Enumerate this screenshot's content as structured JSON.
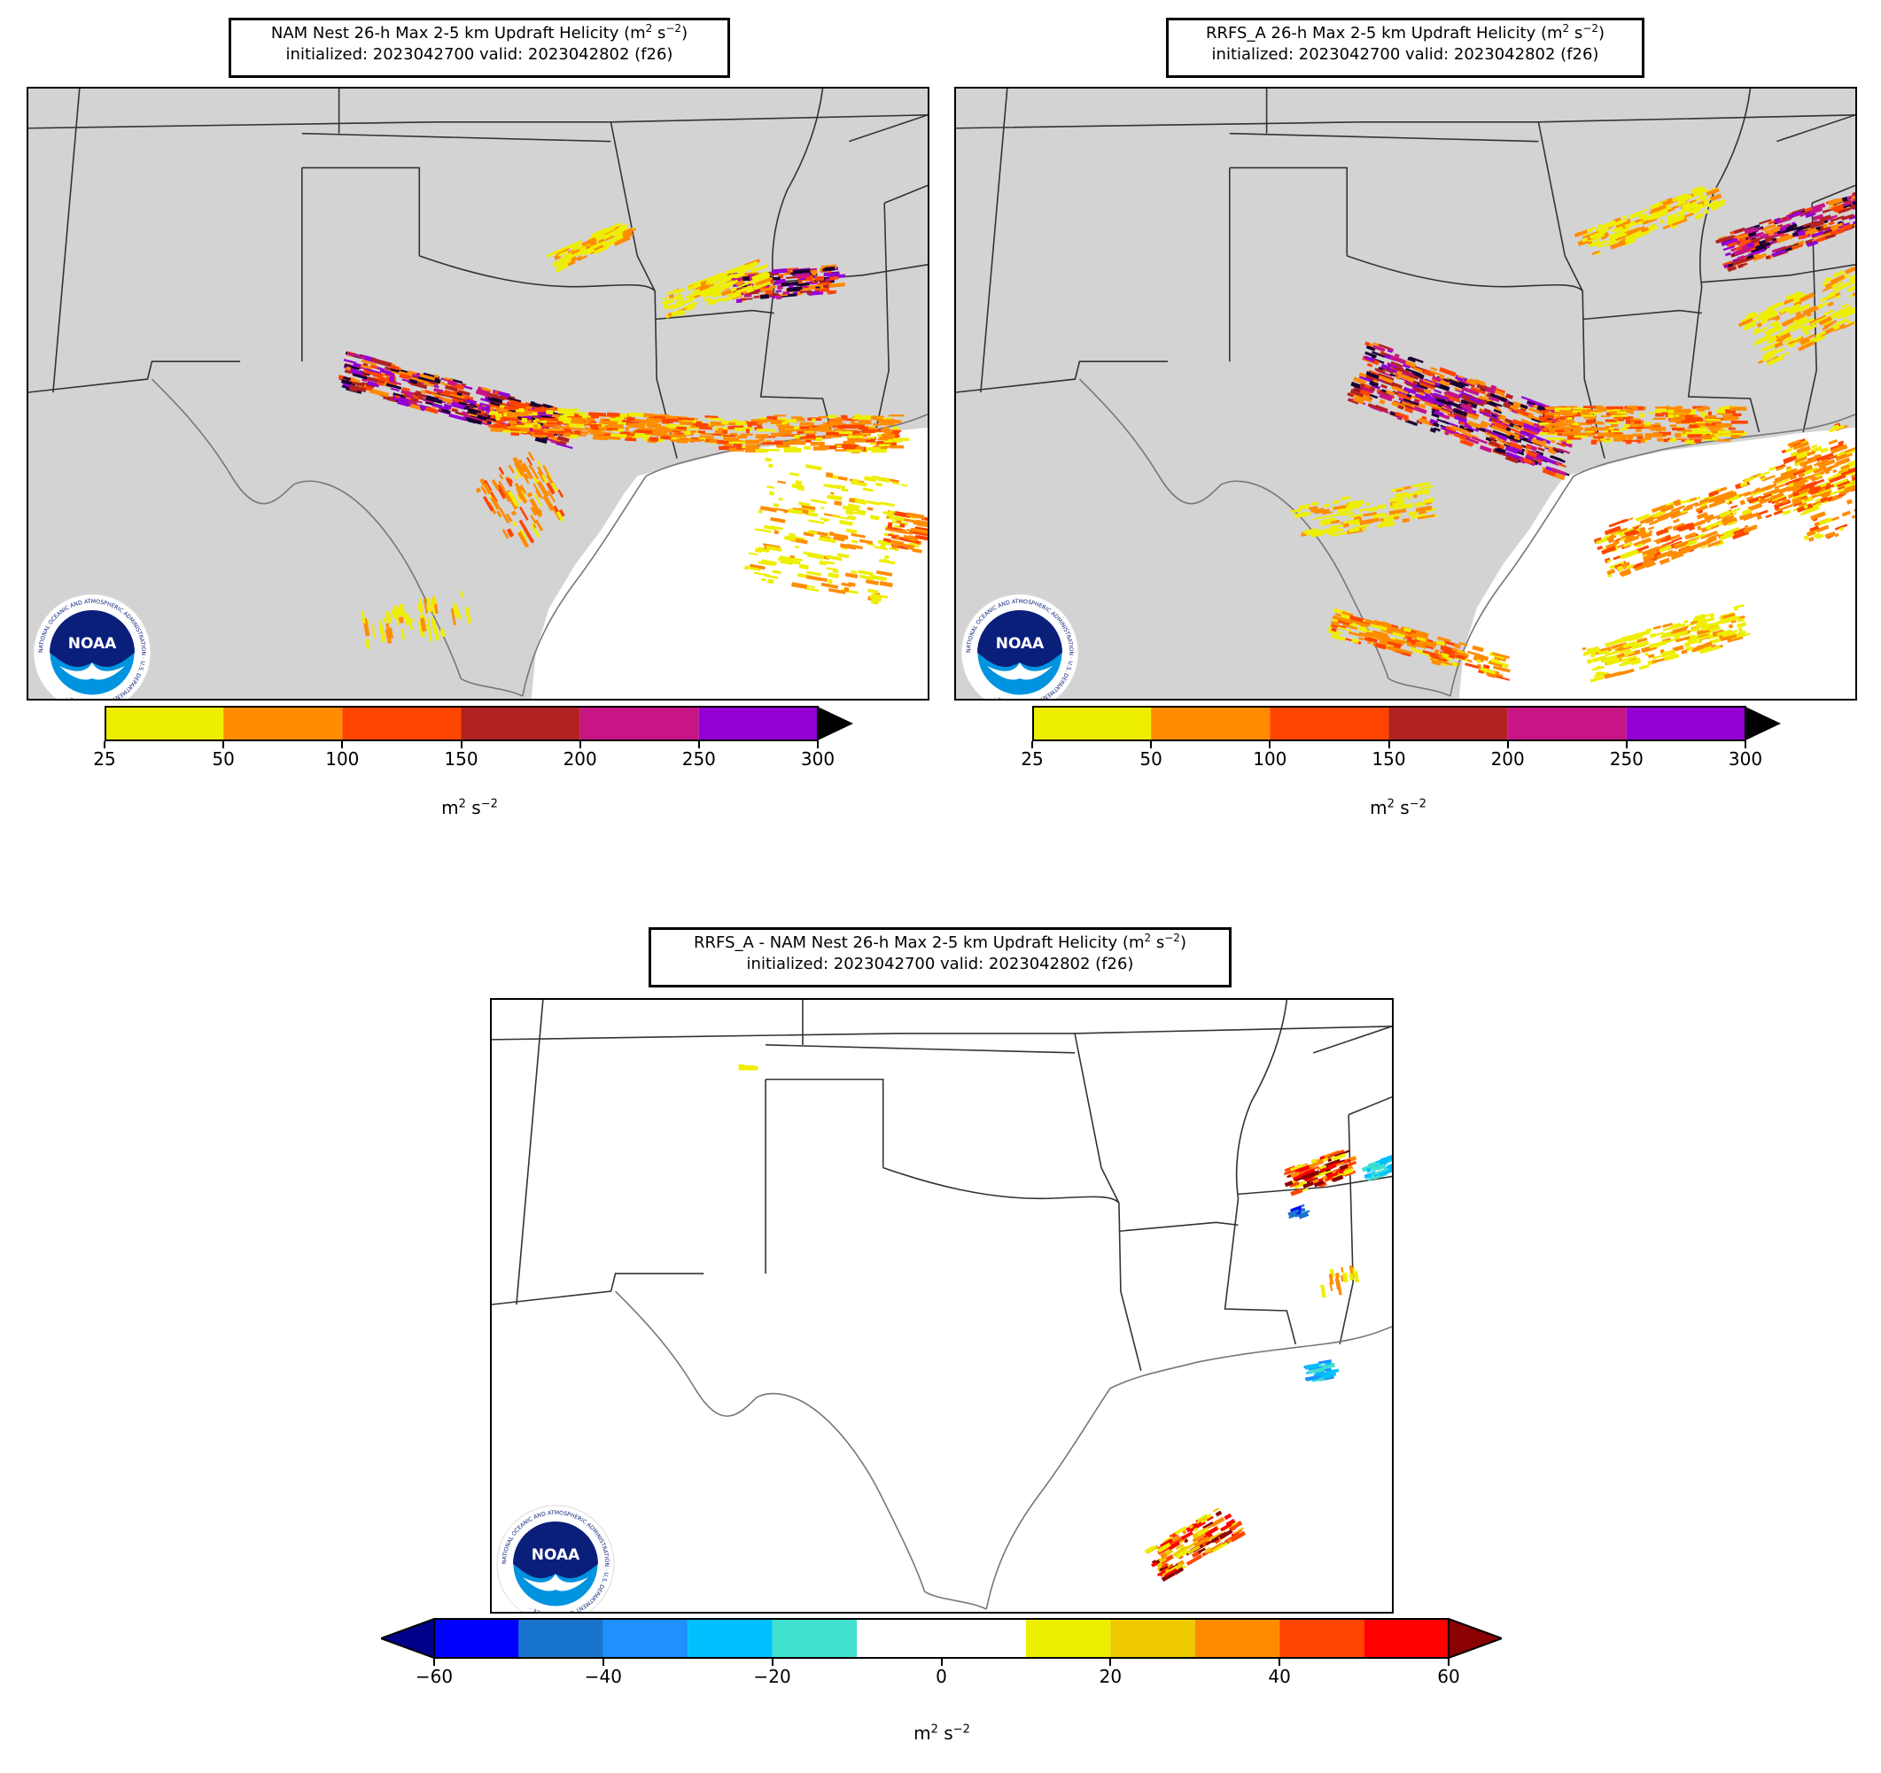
{
  "panels": [
    {
      "title_line1": "NAM Nest 26-h Max 2-5 km Updraft Helicity (m",
      "title_sup": "2",
      "title_mid": " s",
      "title_sup2": "−2",
      "title_end": ")",
      "title_line2": "initialized: 2023042700 valid: 2023042802 (f26)",
      "colorbar": {
        "ticks": [
          "25",
          "50",
          "100",
          "150",
          "200",
          "250",
          "300"
        ],
        "colors": [
          "#eeee00",
          "#ff8c00",
          "#ff4500",
          "#b22222",
          "#c71585",
          "#9400d3"
        ],
        "extend_color": "#000000",
        "unit_base": "m",
        "unit_sup1": "2",
        "unit_mid": " s",
        "unit_sup2": "−2"
      }
    },
    {
      "title_line1": "RRFS_A 26-h Max 2-5 km Updraft Helicity (m",
      "title_sup": "2",
      "title_mid": " s",
      "title_sup2": "−2",
      "title_end": ")",
      "title_line2": "initialized: 2023042700 valid: 2023042802 (f26)",
      "colorbar": {
        "ticks": [
          "25",
          "50",
          "100",
          "150",
          "200",
          "250",
          "300"
        ],
        "colors": [
          "#eeee00",
          "#ff8c00",
          "#ff4500",
          "#b22222",
          "#c71585",
          "#9400d3"
        ],
        "extend_color": "#000000",
        "unit_base": "m",
        "unit_sup1": "2",
        "unit_mid": " s",
        "unit_sup2": "−2"
      }
    },
    {
      "title_line1": "RRFS_A - NAM Nest 26-h Max 2-5 km Updraft Helicity (m",
      "title_sup": "2",
      "title_mid": " s",
      "title_sup2": "−2",
      "title_end": ")",
      "title_line2": "initialized: 2023042700 valid: 2023042802 (f26)",
      "colorbar": {
        "ticks": [
          "−60",
          "−40",
          "−20",
          "0",
          "20",
          "40",
          "60"
        ],
        "colors": [
          "#0000ff",
          "#1874cd",
          "#1e90ff",
          "#00bfff",
          "#40e0d0",
          "#ffffff",
          "#ffffff",
          "#eeee00",
          "#eec900",
          "#ff8c00",
          "#ff4500",
          "#ff0000"
        ],
        "extend_low_color": "#00008b",
        "extend_high_color": "#8b0000",
        "unit_base": "m",
        "unit_sup1": "2",
        "unit_mid": " s",
        "unit_sup2": "−2"
      }
    }
  ],
  "logo": {
    "text": "NOAA",
    "ring_text": "NATIONAL OCEANIC AND ATMOSPHERIC ADMINISTRATION · U.S. DEPARTMENT OF COMMERCE ·",
    "navy": "#0a1f7a",
    "blue": "#0093e0"
  },
  "map_colors": {
    "land": "#d3d3d3",
    "water": "#ffffff",
    "border": "#333333",
    "coast": "#777777"
  }
}
